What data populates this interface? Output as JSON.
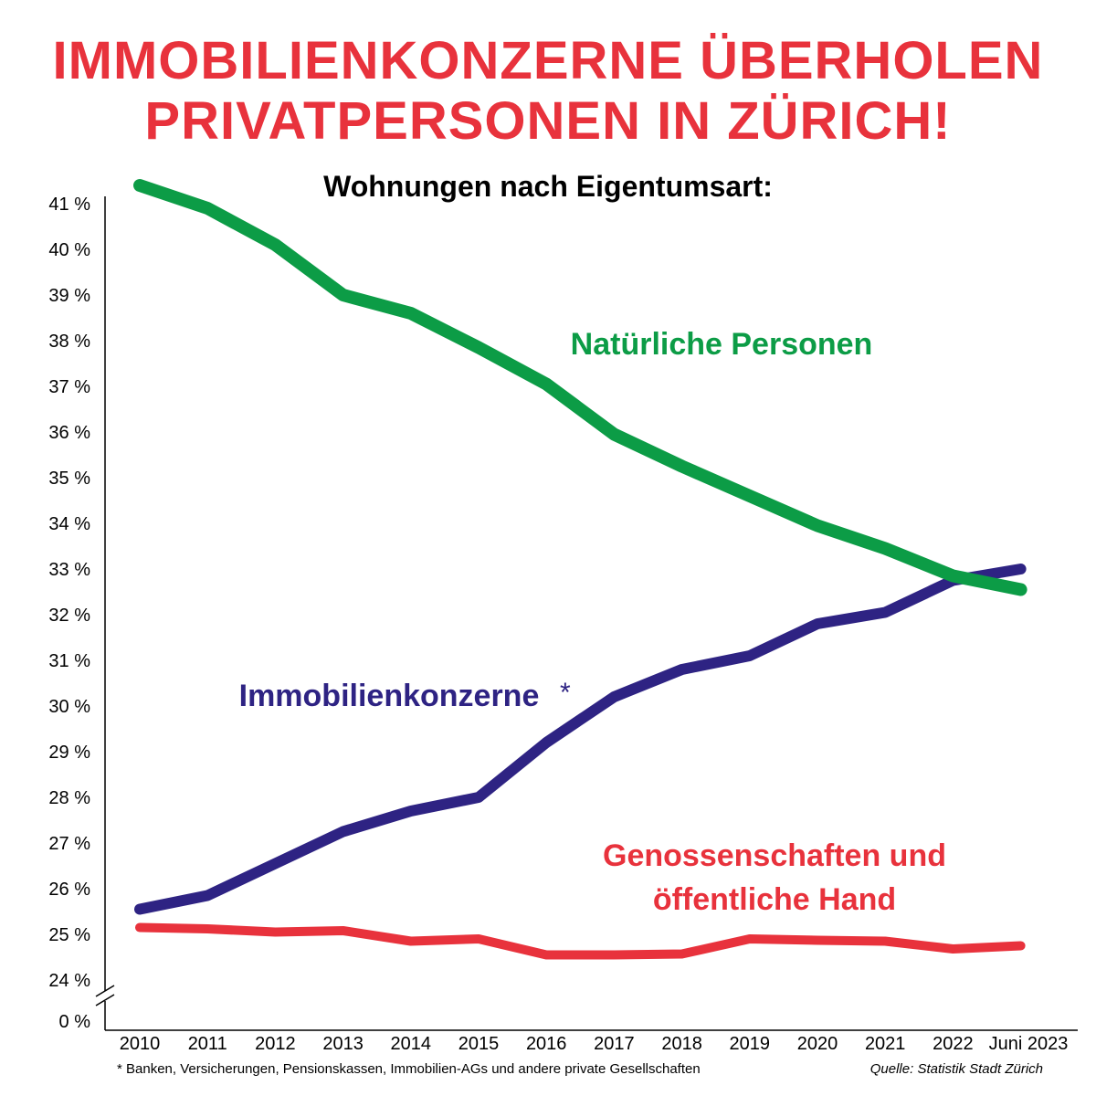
{
  "headline": {
    "line1": "IMMOBILIENKONZERNE ÜBERHOLEN",
    "line2": "PRIVATPERSONEN IN ZÜRICH!"
  },
  "footnote": "* Banken, Versicherungen, Pensionskassen, Immobilien-AGs und andere private Gesellschaften",
  "source": "Quelle: Statistik Stadt Zürich",
  "chart_data": {
    "type": "line",
    "title": "Wohnungen nach Eigentumsart:",
    "categories": [
      "2010",
      "2011",
      "2012",
      "2013",
      "2014",
      "2015",
      "2016",
      "2017",
      "2018",
      "2019",
      "2020",
      "2021",
      "2022",
      "Juni 2023"
    ],
    "y_ticks": [
      "0 %",
      "24 %",
      "25 %",
      "26 %",
      "27 %",
      "28 %",
      "29 %",
      "30 %",
      "31 %",
      "32 %",
      "33 %",
      "34 %",
      "35 %",
      "36 %",
      "37 %",
      "38 %",
      "39 %",
      "40 %",
      "41 %"
    ],
    "ylim": [
      24,
      41.3
    ],
    "axis_break": true,
    "series": [
      {
        "name": "Natürliche Personen",
        "color": "#0c9c46",
        "values": [
          41.4,
          40.9,
          40.1,
          39.0,
          38.6,
          37.85,
          37.05,
          35.95,
          35.25,
          34.6,
          33.95,
          33.45,
          32.85,
          32.55
        ]
      },
      {
        "name": "Immobilienkonzerne",
        "marker": "*",
        "color": "#2e2383",
        "values": [
          25.55,
          25.85,
          26.55,
          27.25,
          27.7,
          28.0,
          29.2,
          30.2,
          30.8,
          31.1,
          31.8,
          32.05,
          32.75,
          33.0
        ]
      },
      {
        "name": "Genossenschaften und öffentliche Hand",
        "name_line1": "Genossenschaften und",
        "name_line2": "öffentliche Hand",
        "color": "#e8323c",
        "values": [
          25.15,
          25.12,
          25.05,
          25.08,
          24.85,
          24.9,
          24.55,
          24.55,
          24.57,
          24.9,
          24.87,
          24.85,
          24.68,
          24.75
        ]
      }
    ]
  }
}
